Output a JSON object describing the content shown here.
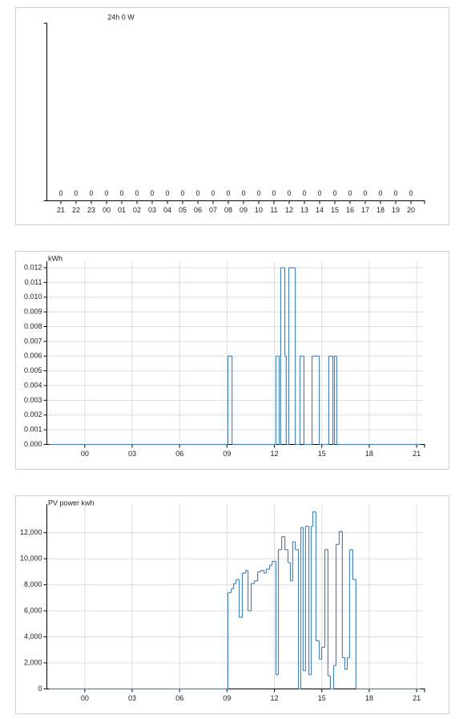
{
  "chart_data": [
    {
      "type": "bar",
      "title": "24h 0 W",
      "color": "#4a86b4",
      "categories": [
        "21",
        "22",
        "23",
        "00",
        "01",
        "02",
        "03",
        "04",
        "05",
        "06",
        "07",
        "08",
        "09",
        "10",
        "11",
        "12",
        "13",
        "14",
        "15",
        "16",
        "17",
        "18",
        "19",
        "20"
      ],
      "values": [
        0,
        0,
        0,
        0,
        0,
        0,
        0,
        0,
        0,
        0,
        0,
        0,
        0,
        0,
        0,
        0,
        0,
        0,
        0,
        0,
        0,
        0,
        0,
        0
      ]
    },
    {
      "type": "line",
      "step": "post",
      "y_label": "kWh",
      "color": "#4a86b4",
      "grid": true,
      "xlim": [
        -2.4,
        21.4
      ],
      "xticks": [
        {
          "value": 0,
          "label": "00"
        },
        {
          "value": 3,
          "label": "03"
        },
        {
          "value": 6,
          "label": "06"
        },
        {
          "value": 9,
          "label": "09"
        },
        12,
        15,
        18,
        21
      ],
      "ylim": [
        0,
        0.012
      ],
      "yticks": [
        {
          "value": 0,
          "label": "0.000"
        },
        0.001,
        0.002,
        0.003,
        0.004,
        0.005,
        0.006,
        0.007,
        0.008,
        0.009,
        {
          "value": 0.01,
          "label": "0.010"
        },
        0.011,
        0.012
      ],
      "x": [
        -2.25,
        9.06,
        9.32,
        12.1,
        12.3,
        12.4,
        12.66,
        12.75,
        12.91,
        13.32,
        13.62,
        13.87,
        14.38,
        14.84,
        15.44,
        15.7,
        15.8,
        15.95,
        21.25
      ],
      "values": [
        0,
        0.006,
        0,
        0.006,
        0,
        0.012,
        0.006,
        0,
        0.012,
        0,
        0.006,
        0,
        0.006,
        0,
        0.006,
        0,
        0.006,
        0,
        0
      ]
    },
    {
      "type": "line",
      "step": "post",
      "y_label": "PV power kwh",
      "color": "#4a86b4",
      "grid": true,
      "xlim": [
        -2.4,
        21.4
      ],
      "xticks": [
        {
          "value": 0,
          "label": "00"
        },
        {
          "value": 3,
          "label": "03"
        },
        {
          "value": 6,
          "label": "06"
        },
        {
          "value": 9,
          "label": "09"
        },
        12,
        15,
        18,
        21
      ],
      "ylim": [
        0,
        13700
      ],
      "yticks": [
        0,
        {
          "value": 2000,
          "label": "2,000"
        },
        {
          "value": 4000,
          "label": "4,000"
        },
        {
          "value": 6000,
          "label": "6,000"
        },
        {
          "value": 8000,
          "label": "8,000"
        },
        {
          "value": 10000,
          "label": "10,000"
        },
        {
          "value": 12000,
          "label": "12,000"
        }
      ],
      "x": [
        -2.25,
        9.06,
        9.27,
        9.42,
        9.57,
        9.77,
        9.97,
        10.18,
        10.33,
        10.53,
        10.73,
        10.94,
        11.14,
        11.34,
        11.49,
        11.7,
        11.85,
        12.1,
        12.25,
        12.46,
        12.66,
        12.86,
        13.01,
        13.16,
        13.32,
        13.52,
        13.67,
        13.82,
        13.97,
        14.18,
        14.33,
        14.43,
        14.63,
        14.84,
        14.99,
        15.19,
        15.39,
        15.54,
        15.75,
        15.9,
        16.1,
        16.3,
        16.46,
        16.61,
        16.76,
        16.96,
        17.16,
        21.25
      ],
      "values": [
        0,
        7400,
        7700,
        8100,
        8400,
        5500,
        8900,
        9100,
        6000,
        8100,
        8300,
        9000,
        9100,
        8900,
        9200,
        9500,
        9800,
        1100,
        10700,
        11700,
        10700,
        9700,
        8300,
        11300,
        10700,
        0,
        12400,
        1400,
        12500,
        1100,
        12500,
        13600,
        3700,
        2300,
        3200,
        10700,
        1000,
        0,
        1800,
        11100,
        12100,
        2400,
        1500,
        2400,
        10700,
        8400,
        0,
        0
      ]
    }
  ]
}
